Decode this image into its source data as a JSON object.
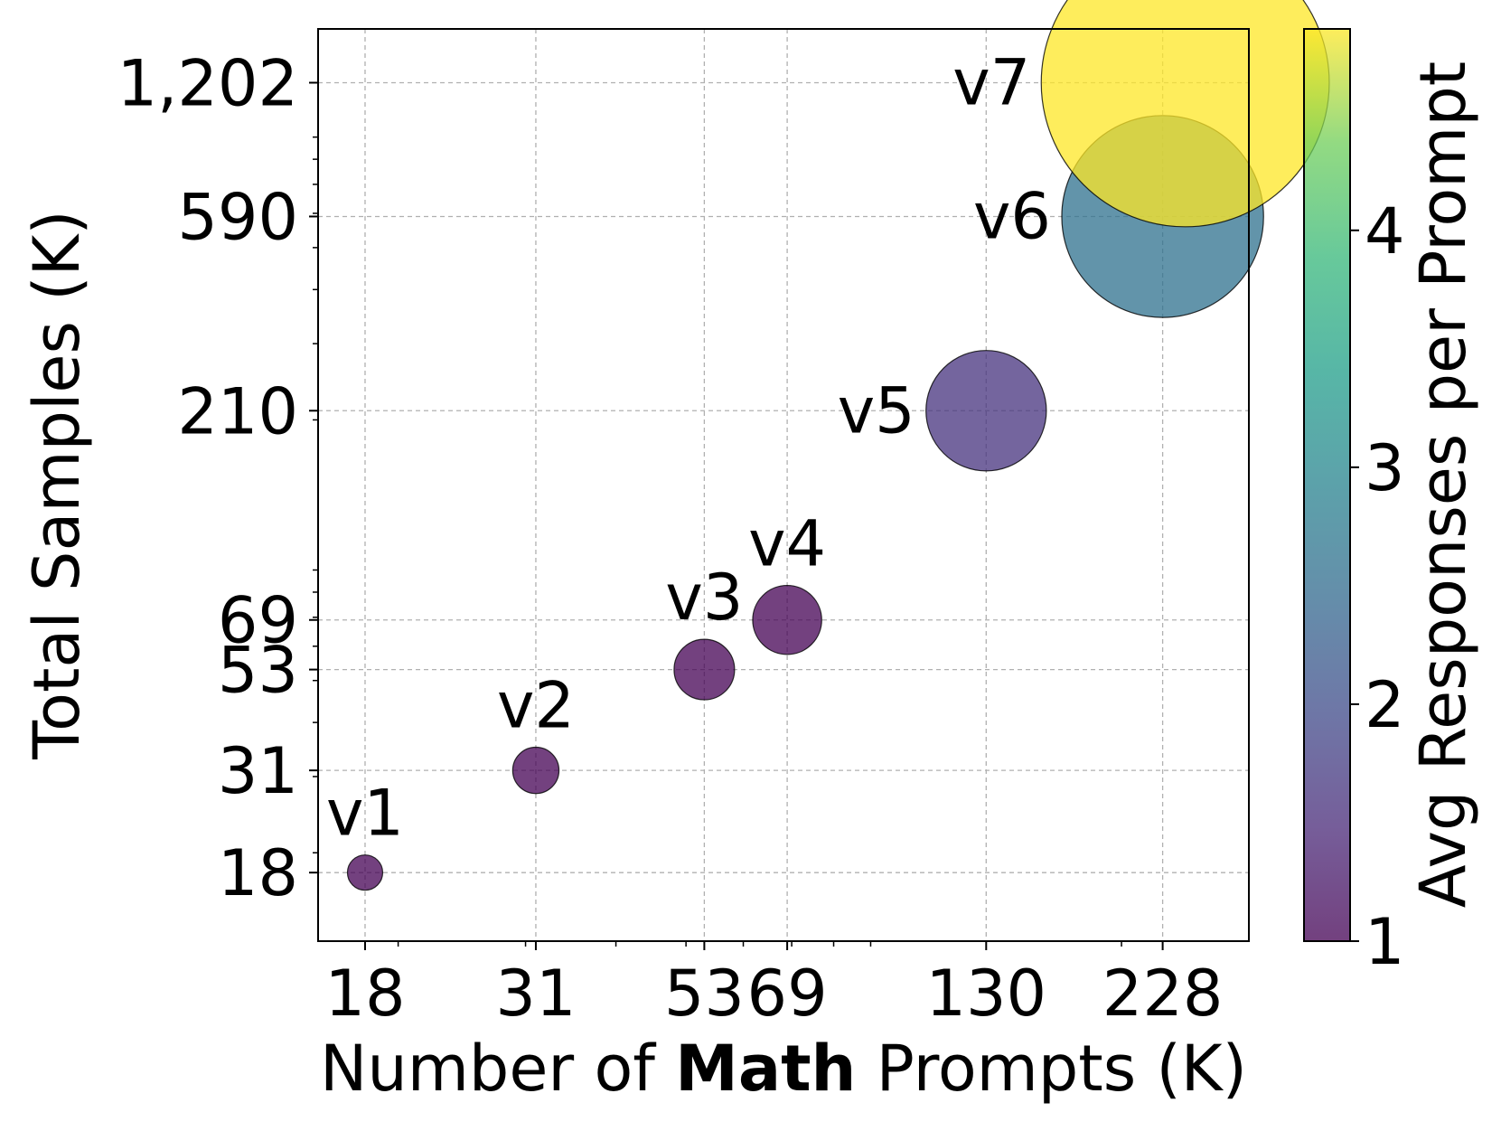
{
  "chart_data": {
    "type": "scatter",
    "xscale": "log",
    "yscale": "log",
    "xlabel_parts": [
      "Number of ",
      "Math",
      " Prompts (K)"
    ],
    "ylabel": "Total Samples (K)",
    "xlim": [
      15.5,
      300
    ],
    "ylim": [
      12.5,
      1600
    ],
    "x_ticks": [
      18,
      31,
      53,
      69,
      130,
      228
    ],
    "x_tick_labels": [
      "18",
      "31",
      "53",
      "69",
      "130",
      "228"
    ],
    "y_ticks": [
      18,
      31,
      53,
      69,
      210,
      590,
      1202
    ],
    "y_tick_labels": [
      "18",
      "31",
      "53",
      "69",
      "210",
      "590",
      "1,202"
    ],
    "grid": true,
    "colorbar": {
      "label": "Avg Responses per Prompt",
      "range": [
        1,
        4.85
      ],
      "ticks": [
        1,
        2,
        3,
        4
      ],
      "tick_labels": [
        "1",
        "2",
        "3",
        "4"
      ],
      "colormap": "viridis"
    },
    "points": [
      {
        "label": "v1",
        "x": 18,
        "y": 18,
        "avg": 1.0
      },
      {
        "label": "v2",
        "x": 31,
        "y": 31,
        "avg": 1.0
      },
      {
        "label": "v3",
        "x": 53,
        "y": 53,
        "avg": 1.0
      },
      {
        "label": "v4",
        "x": 69,
        "y": 69,
        "avg": 1.0
      },
      {
        "label": "v5",
        "x": 130,
        "y": 210,
        "avg": 1.62
      },
      {
        "label": "v6",
        "x": 228,
        "y": 590,
        "avg": 2.59
      },
      {
        "label": "v7",
        "x": 245,
        "y": 1202,
        "avg": 4.9
      }
    ]
  }
}
